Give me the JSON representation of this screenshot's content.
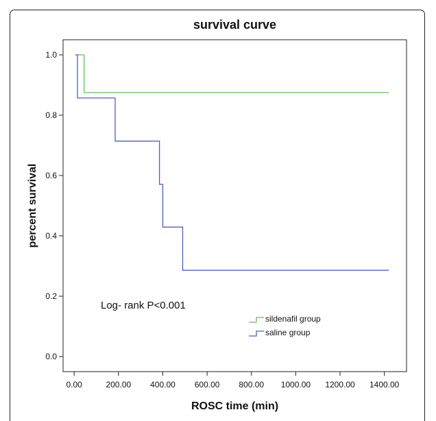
{
  "chart_data": {
    "type": "line",
    "step": true,
    "title": "survival curve",
    "xlabel": "ROSC time (min)",
    "ylabel": "percent survival",
    "xlim": [
      -50,
      1500
    ],
    "ylim": [
      -0.05,
      1.05
    ],
    "xticks": [
      0,
      200,
      400,
      600,
      800,
      1000,
      1200,
      1400
    ],
    "xtick_labels": [
      "0.00",
      "200.00",
      "400.00",
      "600.00",
      "800.00",
      "1000.00",
      "1200.00",
      "1400.00"
    ],
    "yticks": [
      0.0,
      0.2,
      0.4,
      0.6,
      0.8,
      1.0
    ],
    "ytick_labels": [
      "0.0",
      "0.2",
      "0.4",
      "0.6",
      "0.8",
      "1.0"
    ],
    "annotation": "Log- rank P<0.001",
    "legend_position": "lower-right",
    "grid": false,
    "series": [
      {
        "name": "sildenafil group",
        "color": "#5cbf5c",
        "x": [
          10,
          45,
          45,
          1420
        ],
        "y": [
          1.0,
          1.0,
          0.875,
          0.875
        ]
      },
      {
        "name": "saline group",
        "color": "#4a5fc4",
        "x": [
          5,
          15,
          15,
          185,
          185,
          385,
          385,
          400,
          400,
          490,
          490,
          1420
        ],
        "y": [
          1.0,
          1.0,
          0.857,
          0.857,
          0.714,
          0.714,
          0.571,
          0.571,
          0.429,
          0.429,
          0.286,
          0.286
        ]
      }
    ]
  }
}
